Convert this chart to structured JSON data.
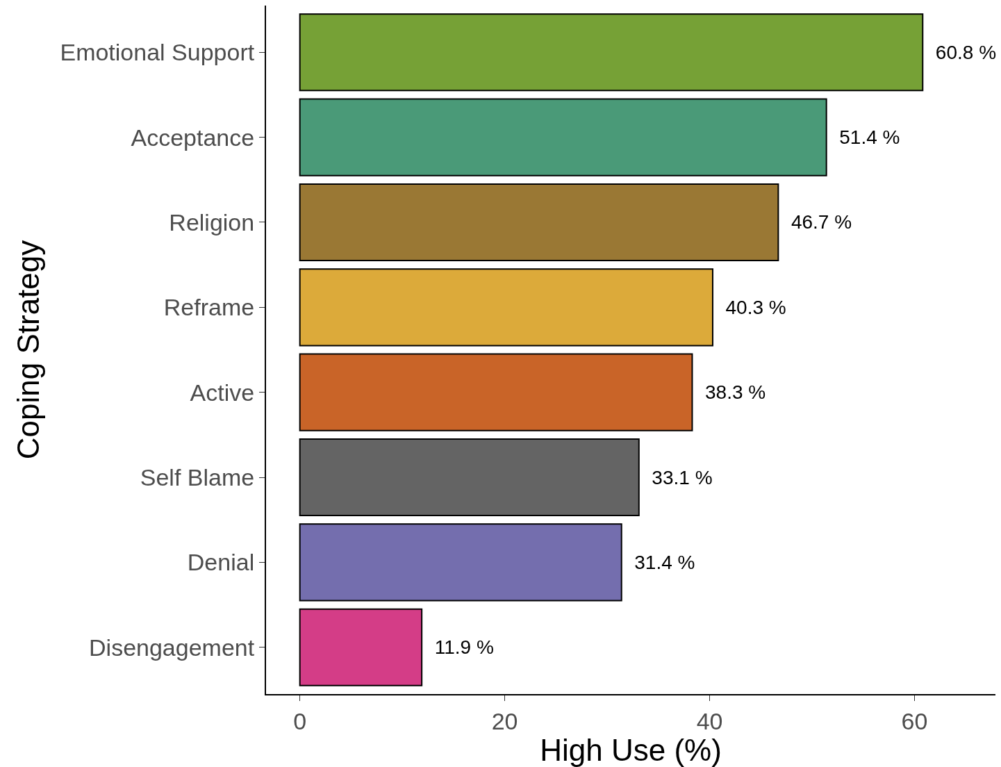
{
  "chart_data": {
    "type": "bar",
    "orientation": "horizontal",
    "xlabel": "High Use (%)",
    "ylabel": "Coping Strategy",
    "categories": [
      "Emotional Support",
      "Acceptance",
      "Religion",
      "Reframe",
      "Active",
      "Self Blame",
      "Denial",
      "Disengagement"
    ],
    "values": [
      60.8,
      51.4,
      46.7,
      40.3,
      38.3,
      33.1,
      31.4,
      11.9
    ],
    "value_labels": [
      "60.8 %",
      "51.4 %",
      "46.7 %",
      "40.3 %",
      "38.3 %",
      "33.1 %",
      "31.4 %",
      "11.9 %"
    ],
    "colors": [
      "#76a136",
      "#4a9a78",
      "#9a7834",
      "#dcaa3a",
      "#c96428",
      "#646464",
      "#746eae",
      "#d43d87"
    ],
    "xlim": [
      -3.3,
      67.9
    ],
    "xticks": [
      0,
      20,
      40,
      60
    ],
    "legend": false
  }
}
